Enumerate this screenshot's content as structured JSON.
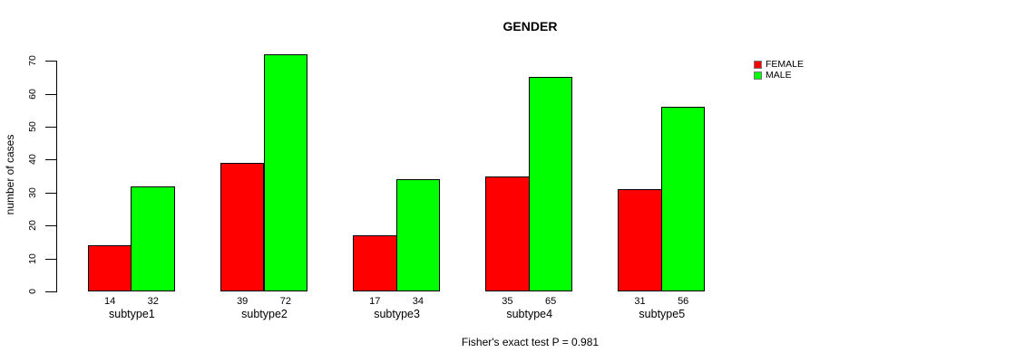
{
  "chart": {
    "title": "GENDER",
    "ylabel": "number of cases",
    "footer": "Fisher's exact test P = 0.981"
  },
  "legend": {
    "items": [
      {
        "label": "FEMALE",
        "color": "#FF0000"
      },
      {
        "label": "MALE",
        "color": "#00FF00"
      }
    ]
  },
  "chart_data": {
    "type": "bar",
    "title": "GENDER",
    "xlabel": "",
    "ylabel": "number of cases",
    "annotation": "Fisher's exact test P = 0.981",
    "categories": [
      "subtype1",
      "subtype2",
      "subtype3",
      "subtype4",
      "subtype5"
    ],
    "series": [
      {
        "name": "FEMALE",
        "color": "#FF0000",
        "values": [
          14,
          39,
          17,
          35,
          31
        ]
      },
      {
        "name": "MALE",
        "color": "#00FF00",
        "values": [
          32,
          72,
          34,
          65,
          56
        ]
      }
    ],
    "bar_value_labels": [
      [
        14,
        32
      ],
      [
        39,
        72
      ],
      [
        17,
        34
      ],
      [
        35,
        65
      ],
      [
        31,
        56
      ]
    ],
    "yticks": [
      0,
      10,
      20,
      30,
      40,
      50,
      60,
      70
    ],
    "ylim": [
      0,
      70
    ],
    "grid": false,
    "legend_position": "top-right",
    "x_axis_line": false,
    "bar_border_color": "#000000"
  }
}
